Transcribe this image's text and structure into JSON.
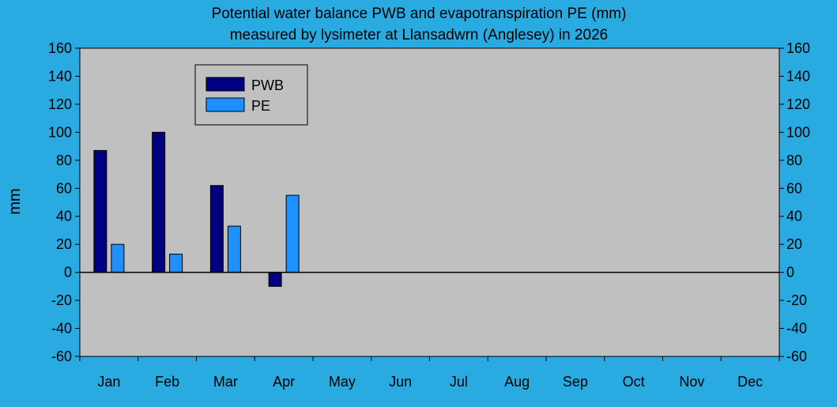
{
  "chart_data": {
    "type": "bar",
    "title": [
      "Potential water balance PWB and evapotranspiration PE (mm)",
      "measured by lysimeter at Llansadwrn (Anglesey) in 2026"
    ],
    "ylabel": "mm",
    "xlabel": "",
    "categories": [
      "Jan",
      "Feb",
      "Mar",
      "Apr",
      "May",
      "Jun",
      "Jul",
      "Aug",
      "Sep",
      "Oct",
      "Nov",
      "Dec"
    ],
    "series": [
      {
        "name": "PWB",
        "color": "#000080",
        "values": [
          87,
          100,
          62,
          -10,
          null,
          null,
          null,
          null,
          null,
          null,
          null,
          null
        ]
      },
      {
        "name": "PE",
        "color": "#1E90FF",
        "values": [
          20,
          13,
          33,
          55,
          null,
          null,
          null,
          null,
          null,
          null,
          null,
          null
        ]
      }
    ],
    "ylim": [
      -60,
      160
    ],
    "yticks": [
      -60,
      -40,
      -20,
      0,
      20,
      40,
      60,
      80,
      100,
      120,
      140,
      160
    ],
    "legend_position": "top-left",
    "grid": false,
    "plot_background": "#C0C0C0",
    "page_background": "#29ABE2"
  }
}
